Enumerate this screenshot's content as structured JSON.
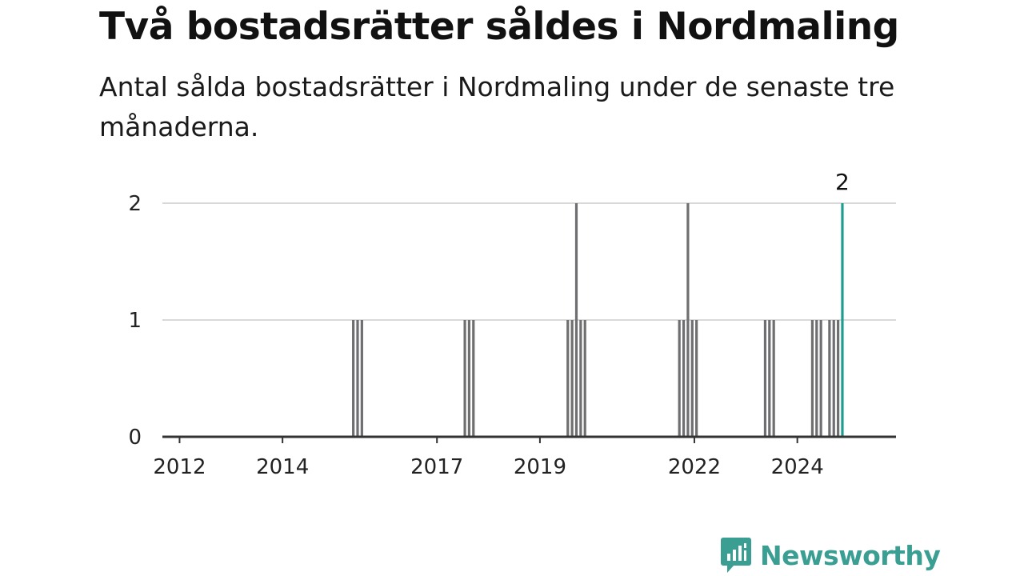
{
  "title": "Två bostadsrätter såldes i Nordmaling",
  "subtitle": "Antal sålda bostadsrätter i Nordmaling under de senaste tre månaderna.",
  "brand": {
    "name": "Newsworthy",
    "color": "#3a9e92"
  },
  "colors": {
    "bar": "#6f6f72",
    "highlight": "#1a9e8f",
    "grid": "#d9d9d9",
    "axis": "#333333"
  },
  "chart_data": {
    "type": "bar",
    "title": "Två bostadsrätter såldes i Nordmaling",
    "subtitle": "Antal sålda bostadsrätter i Nordmaling under de senaste tre månaderna.",
    "xlabel": "",
    "ylabel": "",
    "ylim": [
      0,
      2
    ],
    "yticks": [
      "0",
      "1",
      "2"
    ],
    "xticks": [
      "2012",
      "2014",
      "2017",
      "2019",
      "2022",
      "2024"
    ],
    "x_range": [
      "2011-09",
      "2025-12"
    ],
    "grid": true,
    "series": [
      {
        "values": [
          {
            "x": "2015-05",
            "y": 1
          },
          {
            "x": "2015-06",
            "y": 1
          },
          {
            "x": "2015-07",
            "y": 1
          },
          {
            "x": "2017-07",
            "y": 1
          },
          {
            "x": "2017-08",
            "y": 1
          },
          {
            "x": "2017-09",
            "y": 1
          },
          {
            "x": "2019-07",
            "y": 1
          },
          {
            "x": "2019-08",
            "y": 1
          },
          {
            "x": "2019-09",
            "y": 2
          },
          {
            "x": "2019-10",
            "y": 1
          },
          {
            "x": "2019-11",
            "y": 1
          },
          {
            "x": "2021-09",
            "y": 1
          },
          {
            "x": "2021-10",
            "y": 1
          },
          {
            "x": "2021-11",
            "y": 2
          },
          {
            "x": "2021-12",
            "y": 1
          },
          {
            "x": "2022-01",
            "y": 1
          },
          {
            "x": "2023-05",
            "y": 1
          },
          {
            "x": "2023-06",
            "y": 1
          },
          {
            "x": "2023-07",
            "y": 1
          },
          {
            "x": "2024-04",
            "y": 1
          },
          {
            "x": "2024-05",
            "y": 1
          },
          {
            "x": "2024-06",
            "y": 1
          },
          {
            "x": "2024-08",
            "y": 1
          },
          {
            "x": "2024-09",
            "y": 1
          },
          {
            "x": "2024-10",
            "y": 1
          },
          {
            "x": "2024-11",
            "y": 2
          }
        ]
      }
    ],
    "highlight": {
      "x": "2024-11",
      "y": 2,
      "label": "2"
    }
  }
}
